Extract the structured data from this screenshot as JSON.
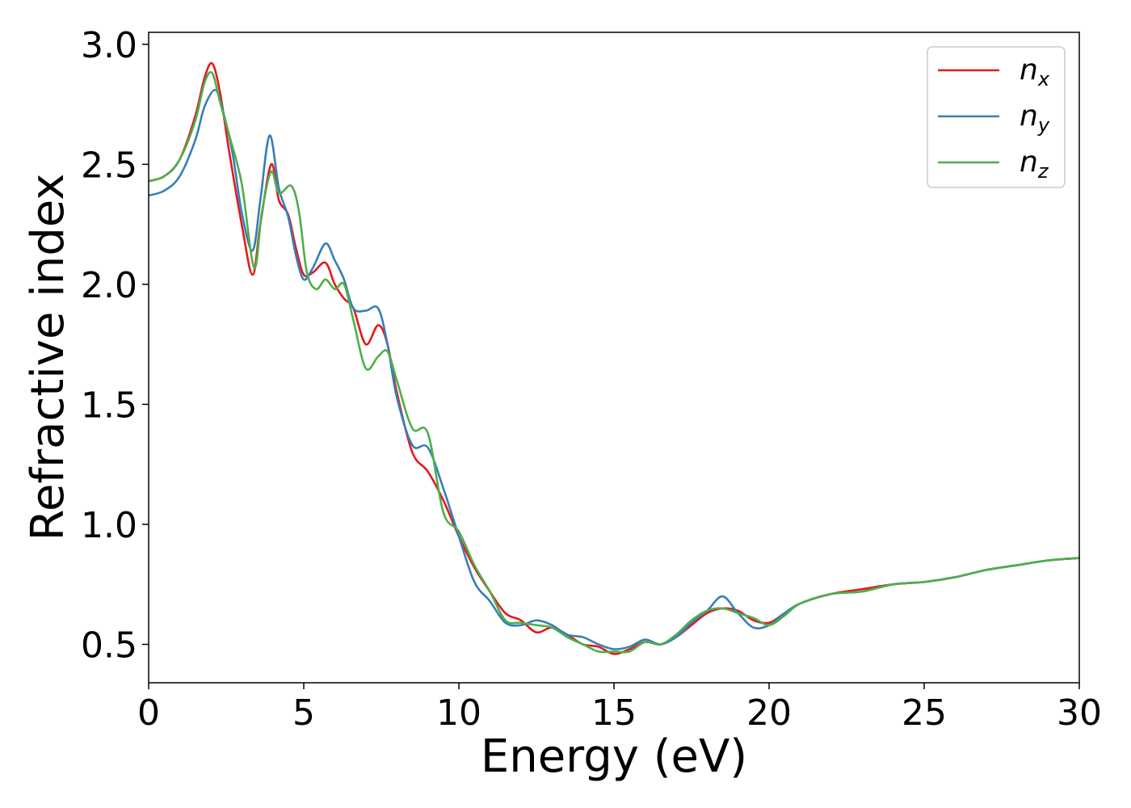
{
  "chart_data": {
    "type": "line",
    "title": "",
    "xlabel": "Energy (eV)",
    "ylabel": "Refractive index",
    "xlim": [
      0,
      30
    ],
    "ylim": [
      0.34,
      3.05
    ],
    "xticks": [
      0,
      5,
      10,
      15,
      20,
      25,
      30
    ],
    "xtick_labels": [
      "0",
      "5",
      "10",
      "15",
      "20",
      "25",
      "30"
    ],
    "yticks": [
      0.5,
      1.0,
      1.5,
      2.0,
      2.5,
      3.0
    ],
    "ytick_labels": [
      "0.5",
      "1.0",
      "1.5",
      "2.0",
      "2.5",
      "3.0"
    ],
    "grid": false,
    "legend_position": "top-right",
    "series": [
      {
        "name": "n",
        "subscript": "x",
        "color": "#e41a1c",
        "x": [
          0,
          0.5,
          1.0,
          1.5,
          1.8,
          2.05,
          2.3,
          2.6,
          3.0,
          3.35,
          3.6,
          3.95,
          4.2,
          4.5,
          4.75,
          5.0,
          5.3,
          5.7,
          6.0,
          6.3,
          6.6,
          7.0,
          7.4,
          7.7,
          8.0,
          8.5,
          9.0,
          9.5,
          10.0,
          10.5,
          11.0,
          11.5,
          12.0,
          12.5,
          13.0,
          13.5,
          14.0,
          14.5,
          15.0,
          15.5,
          16.0,
          16.5,
          17.0,
          17.5,
          18.0,
          18.5,
          19.0,
          19.5,
          20.0,
          20.5,
          21.0,
          22.0,
          23.0,
          24.0,
          25.0,
          26.0,
          27.0,
          28.0,
          29.0,
          30.0
        ],
        "values": [
          2.43,
          2.45,
          2.52,
          2.7,
          2.86,
          2.92,
          2.8,
          2.55,
          2.25,
          2.04,
          2.25,
          2.5,
          2.35,
          2.29,
          2.15,
          2.04,
          2.05,
          2.09,
          2.0,
          1.94,
          1.9,
          1.75,
          1.83,
          1.75,
          1.55,
          1.3,
          1.22,
          1.1,
          0.95,
          0.82,
          0.72,
          0.63,
          0.6,
          0.55,
          0.57,
          0.54,
          0.5,
          0.49,
          0.46,
          0.48,
          0.51,
          0.5,
          0.53,
          0.58,
          0.63,
          0.65,
          0.64,
          0.6,
          0.59,
          0.63,
          0.67,
          0.71,
          0.73,
          0.75,
          0.76,
          0.78,
          0.81,
          0.83,
          0.85,
          0.86
        ]
      },
      {
        "name": "n",
        "subscript": "y",
        "color": "#377eb8",
        "x": [
          0,
          0.5,
          1.0,
          1.5,
          1.8,
          2.15,
          2.4,
          2.7,
          3.0,
          3.35,
          3.6,
          3.9,
          4.2,
          4.5,
          4.75,
          5.0,
          5.3,
          5.7,
          6.0,
          6.3,
          6.6,
          7.0,
          7.4,
          7.7,
          8.0,
          8.5,
          9.0,
          9.5,
          10.0,
          10.5,
          11.0,
          11.5,
          12.0,
          12.5,
          13.0,
          13.5,
          14.0,
          14.5,
          15.0,
          15.5,
          16.0,
          16.5,
          17.0,
          17.5,
          18.0,
          18.5,
          19.0,
          19.5,
          20.0,
          20.5,
          21.0,
          22.0,
          23.0,
          24.0,
          25.0,
          26.0,
          27.0,
          28.0,
          29.0,
          30.0
        ],
        "values": [
          2.37,
          2.39,
          2.45,
          2.6,
          2.74,
          2.81,
          2.72,
          2.55,
          2.3,
          2.14,
          2.35,
          2.62,
          2.4,
          2.28,
          2.12,
          2.02,
          2.07,
          2.17,
          2.1,
          2.02,
          1.9,
          1.89,
          1.9,
          1.75,
          1.53,
          1.33,
          1.32,
          1.15,
          0.95,
          0.76,
          0.68,
          0.59,
          0.58,
          0.6,
          0.58,
          0.54,
          0.53,
          0.5,
          0.48,
          0.49,
          0.52,
          0.5,
          0.53,
          0.59,
          0.64,
          0.7,
          0.63,
          0.57,
          0.58,
          0.63,
          0.67,
          0.71,
          0.72,
          0.75,
          0.76,
          0.78,
          0.81,
          0.83,
          0.85,
          0.86
        ]
      },
      {
        "name": "n",
        "subscript": "z",
        "color": "#4daf4a",
        "x": [
          0,
          0.5,
          1.0,
          1.5,
          1.8,
          2.05,
          2.3,
          2.6,
          3.0,
          3.4,
          3.65,
          3.95,
          4.2,
          4.6,
          4.85,
          5.1,
          5.4,
          5.7,
          6.0,
          6.3,
          6.6,
          7.0,
          7.4,
          7.7,
          8.0,
          8.5,
          9.0,
          9.5,
          10.0,
          10.5,
          11.0,
          11.5,
          12.0,
          12.5,
          13.0,
          13.5,
          14.0,
          14.5,
          15.0,
          15.5,
          16.0,
          16.5,
          17.0,
          17.5,
          18.0,
          18.5,
          19.0,
          19.5,
          20.0,
          20.5,
          21.0,
          22.0,
          23.0,
          24.0,
          25.0,
          26.0,
          27.0,
          28.0,
          29.0,
          30.0
        ],
        "values": [
          2.43,
          2.45,
          2.52,
          2.68,
          2.84,
          2.88,
          2.76,
          2.62,
          2.42,
          2.07,
          2.3,
          2.47,
          2.38,
          2.41,
          2.3,
          2.05,
          1.98,
          2.02,
          1.98,
          2.0,
          1.85,
          1.65,
          1.7,
          1.72,
          1.6,
          1.4,
          1.38,
          1.05,
          0.97,
          0.83,
          0.72,
          0.6,
          0.59,
          0.58,
          0.57,
          0.53,
          0.5,
          0.47,
          0.47,
          0.47,
          0.51,
          0.5,
          0.54,
          0.6,
          0.64,
          0.65,
          0.63,
          0.61,
          0.58,
          0.62,
          0.67,
          0.71,
          0.72,
          0.75,
          0.76,
          0.78,
          0.81,
          0.83,
          0.85,
          0.86
        ]
      }
    ]
  }
}
